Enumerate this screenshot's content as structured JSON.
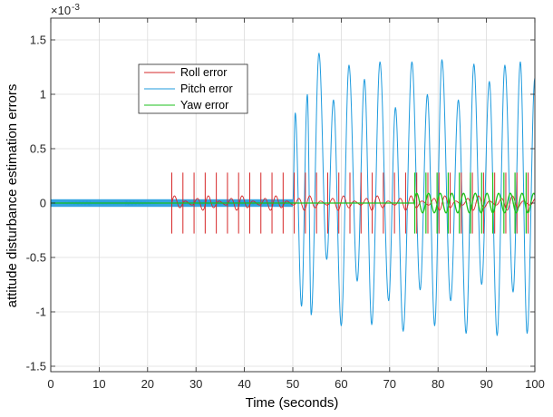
{
  "chart_data": {
    "type": "line",
    "title": "",
    "xlabel": "Time (seconds)",
    "ylabel": "attitude disturbance estimation errors",
    "y_exponent_label": "×10",
    "y_exponent_power": "-3",
    "xlim": [
      0,
      100
    ],
    "ylim": [
      -1.55,
      1.7
    ],
    "x_ticks": [
      0,
      10,
      20,
      30,
      40,
      50,
      60,
      70,
      80,
      90,
      100
    ],
    "x_tick_labels": [
      "0",
      "10",
      "20",
      "30",
      "40",
      "50",
      "60",
      "70",
      "80",
      "90",
      "100"
    ],
    "y_ticks": [
      -1.5,
      -1,
      -0.5,
      0,
      0.5,
      1,
      1.5
    ],
    "y_tick_labels": [
      "-1.5",
      "-1",
      "-0.5",
      "0",
      "0.5",
      "1",
      "1.5"
    ],
    "grid": true,
    "legend_position": "upper-left",
    "series": [
      {
        "name": "Roll error",
        "color": "#d62728",
        "behavior": "zero until t=25; then small oscillation ±0.07 with spikes of ±0.28 about every 2.3 s",
        "spike_times": [
          25,
          27.3,
          29.6,
          31.9,
          34.2,
          36.5,
          38.8,
          41.1,
          43.4,
          45.7,
          48,
          50.3,
          52.6,
          54.9,
          57.2,
          59.5,
          61.8,
          64.1,
          66.4,
          68.7,
          71,
          73.3,
          75.6,
          77.9,
          80.2,
          82.5,
          84.8,
          87.1,
          89.4,
          91.7,
          94,
          96.3,
          98.6
        ],
        "spike_amplitude": 0.28,
        "oscillation_amplitude": 0.07
      },
      {
        "name": "Pitch error",
        "color": "#1f9bde",
        "behavior": "fast oscillation ±0.01 until t=50; then large oscillations",
        "peaks": [
          {
            "t": 50.5,
            "v": 0.83
          },
          {
            "t": 51.8,
            "v": -0.95
          },
          {
            "t": 53.0,
            "v": 1.0
          },
          {
            "t": 53.8,
            "v": -1.03
          },
          {
            "t": 55.4,
            "v": 1.38
          },
          {
            "t": 57.0,
            "v": -0.52
          },
          {
            "t": 58.4,
            "v": 0.95
          },
          {
            "t": 60.0,
            "v": -1.13
          },
          {
            "t": 61.6,
            "v": 1.27
          },
          {
            "t": 63.3,
            "v": -0.72
          },
          {
            "t": 64.8,
            "v": 1.14
          },
          {
            "t": 66.3,
            "v": -1.12
          },
          {
            "t": 68.0,
            "v": 1.3
          },
          {
            "t": 69.8,
            "v": -0.9
          },
          {
            "t": 71.2,
            "v": 0.88
          },
          {
            "t": 72.8,
            "v": -1.18
          },
          {
            "t": 74.6,
            "v": 1.3
          },
          {
            "t": 76.3,
            "v": -0.8
          },
          {
            "t": 77.8,
            "v": 1.0
          },
          {
            "t": 79.3,
            "v": -1.13
          },
          {
            "t": 80.8,
            "v": 1.32
          },
          {
            "t": 82.6,
            "v": -0.9
          },
          {
            "t": 84.2,
            "v": 0.95
          },
          {
            "t": 85.8,
            "v": -1.2
          },
          {
            "t": 87.4,
            "v": 1.28
          },
          {
            "t": 89.0,
            "v": -0.75
          },
          {
            "t": 90.6,
            "v": 1.12
          },
          {
            "t": 92.2,
            "v": -1.22
          },
          {
            "t": 93.8,
            "v": 1.27
          },
          {
            "t": 95.5,
            "v": -0.82
          },
          {
            "t": 97.0,
            "v": 1.3
          },
          {
            "t": 98.4,
            "v": -1.2
          },
          {
            "t": 100,
            "v": 1.15
          }
        ]
      },
      {
        "name": "Yaw error",
        "color": "#1dc21d",
        "behavior": "zero until t=75; then oscillation ±0.09 with spikes of ±0.28 about every 2.3 s",
        "spike_times": [
          75.2,
          77.5,
          79.8,
          82.1,
          84.4,
          86.7,
          89,
          91.3,
          93.6,
          95.9,
          98.2
        ],
        "spike_amplitude": 0.28,
        "oscillation_amplitude": 0.09
      }
    ]
  }
}
